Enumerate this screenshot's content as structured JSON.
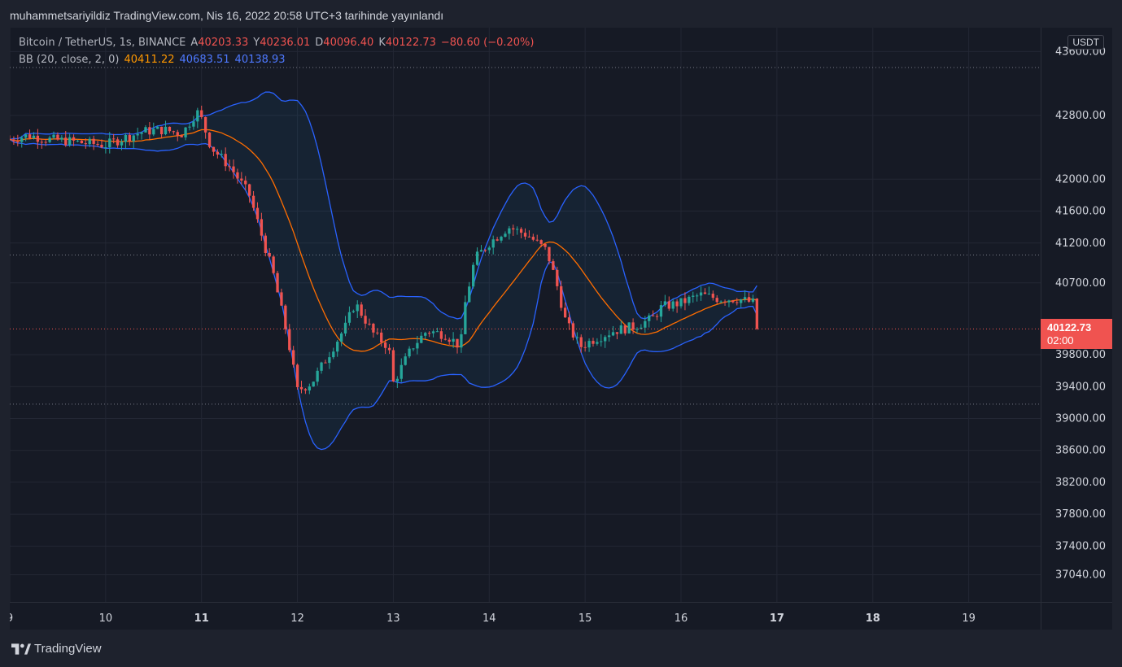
{
  "header": {
    "publish_text": "muhammetsariyildiz TradingView.com, Nis 16, 2022 20:58 UTC+3 tarihinde yayınlandı"
  },
  "legend": {
    "symbol": "Bitcoin / TetherUS, 1s, BINANCE",
    "open_label": "A",
    "open": "40203.33",
    "high_label": "Y",
    "high": "40236.01",
    "low_label": "D",
    "low": "40096.40",
    "close_label": "K",
    "close": "40122.73",
    "change": "−80.60 (−0.20%)",
    "indicator": "BB (20, close, 2, 0)",
    "bb_basis": "40411.22",
    "bb_upper": "40683.51",
    "bb_lower": "40138.93"
  },
  "currency_label": "USDT",
  "last_price": {
    "value": "40122.73",
    "countdown": "02:00"
  },
  "footer": {
    "brand": "TradingView"
  },
  "colors": {
    "up": "#26a69a",
    "down": "#ef5350",
    "basis": "#ff6d00",
    "band": "#2962ff",
    "background": "#161a25"
  },
  "chart_data": {
    "type": "candlestick",
    "title": "Bitcoin / TetherUS, 1s, BINANCE",
    "currency": "USDT",
    "y_ticks": [
      "43600.00",
      "42800.00",
      "42000.00",
      "41600.00",
      "41200.00",
      "40700.00",
      "39800.00",
      "39400.00",
      "39000.00",
      "38600.00",
      "38200.00",
      "37800.00",
      "37400.00",
      "37040.00"
    ],
    "x_ticks": [
      "9",
      "10",
      "11",
      "12",
      "13",
      "14",
      "15",
      "16",
      "17",
      "18",
      "19"
    ],
    "x_ticks_bold": [
      "11",
      "17",
      "18"
    ],
    "ylim": [
      36700,
      43900
    ],
    "xlim": [
      9.0,
      19.75
    ],
    "last_price": 40122.73,
    "dotted_levels": [
      43400,
      41050,
      39180
    ],
    "ohlc_keypoints": [
      [
        9.0,
        42500
      ],
      [
        9.2,
        42550
      ],
      [
        9.4,
        42500
      ],
      [
        9.6,
        42480
      ],
      [
        9.8,
        42450
      ],
      [
        10.0,
        42430
      ],
      [
        10.2,
        42520
      ],
      [
        10.4,
        42600
      ],
      [
        10.6,
        42620
      ],
      [
        10.8,
        42570
      ],
      [
        10.95,
        42850
      ],
      [
        11.0,
        42750
      ],
      [
        11.1,
        42400
      ],
      [
        11.3,
        42150
      ],
      [
        11.5,
        41800
      ],
      [
        11.6,
        41400
      ],
      [
        11.75,
        40800
      ],
      [
        11.9,
        40000
      ],
      [
        12.0,
        39350
      ],
      [
        12.15,
        39450
      ],
      [
        12.3,
        39750
      ],
      [
        12.5,
        40150
      ],
      [
        12.6,
        40450
      ],
      [
        12.8,
        40050
      ],
      [
        12.95,
        39900
      ],
      [
        13.0,
        39450
      ],
      [
        13.2,
        39900
      ],
      [
        13.35,
        40100
      ],
      [
        13.55,
        40050
      ],
      [
        13.7,
        39900
      ],
      [
        13.75,
        40450
      ],
      [
        13.85,
        41000
      ],
      [
        14.0,
        41200
      ],
      [
        14.2,
        41400
      ],
      [
        14.4,
        41300
      ],
      [
        14.6,
        41100
      ],
      [
        14.7,
        40700
      ],
      [
        14.8,
        40200
      ],
      [
        14.95,
        39900
      ],
      [
        15.1,
        40000
      ],
      [
        15.3,
        40100
      ],
      [
        15.5,
        40150
      ],
      [
        15.7,
        40250
      ],
      [
        15.8,
        40400
      ],
      [
        16.0,
        40450
      ],
      [
        16.2,
        40550
      ],
      [
        16.4,
        40500
      ],
      [
        16.6,
        40500
      ],
      [
        16.75,
        40450
      ],
      [
        16.8,
        40120
      ]
    ]
  }
}
